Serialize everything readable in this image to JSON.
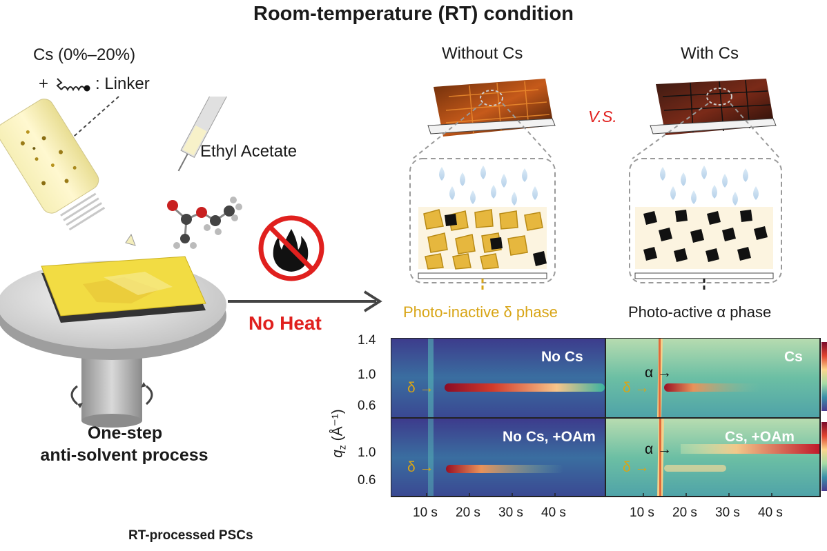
{
  "title": "Room-temperature (RT) condition",
  "left": {
    "cs_label": "Cs (0%–20%)",
    "linker_prefix": "+",
    "linker_label": ": Linker",
    "solvent_label": "Ethyl Acetate",
    "process_line1": "One-step",
    "process_line2": "anti-solvent process",
    "footer": "RT-processed PSCs"
  },
  "no_heat": "No Heat",
  "compare": {
    "without_label": "Without Cs",
    "with_label": "With Cs",
    "vs_label": "V.S.",
    "delta_phase": "Photo-inactive δ phase",
    "alpha_phase": "Photo-active α phase"
  },
  "heatmaps": {
    "y_axis_label": "q",
    "y_axis_sub": "z",
    "y_axis_unit": " (Å⁻¹)",
    "y_ticks_top": [
      "1.4",
      "1.0",
      "0.6"
    ],
    "y_ticks_bottom": [
      "1.0",
      "0.6"
    ],
    "x_ticks": [
      "10 s",
      "20 s",
      "30 s",
      "40 s"
    ],
    "panels": [
      {
        "label": "No Cs",
        "markers": [
          "δ →"
        ]
      },
      {
        "label": "Cs",
        "markers": [
          "δ →",
          "α →"
        ]
      },
      {
        "label": "No Cs, +OAm",
        "markers": [
          "δ →"
        ]
      },
      {
        "label": "Cs, +OAm",
        "markers": [
          "δ →",
          "α →"
        ]
      }
    ]
  },
  "colors": {
    "accent_red": "#e0201e",
    "gold": "#d8a516",
    "heat_dark": "#3b3d8f",
    "heat_mid": "#3fa28a",
    "heat_hot": "#c41f2a"
  }
}
